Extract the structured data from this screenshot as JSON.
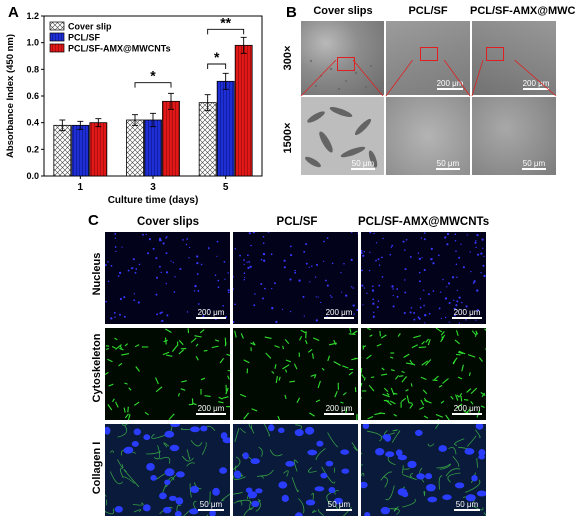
{
  "panels": {
    "a": {
      "letter": "A"
    },
    "b": {
      "letter": "B",
      "columns": [
        "Cover slips",
        "PCL/SF",
        "PCL/SF-AMX@MWCNTs"
      ],
      "rows": [
        "300×",
        "1500×"
      ],
      "scale_top": "200 μm",
      "scale_bottom": "50 μm"
    },
    "c": {
      "letter": "C",
      "columns": [
        "Cover slips",
        "PCL/SF",
        "PCL/SF-AMX@MWCNTs"
      ],
      "rows": [
        "Nucleus",
        "Cytoskeleton",
        "Collagen I"
      ],
      "scale_200": "200 μm",
      "scale_50": "50 μm"
    }
  },
  "chart_data": {
    "type": "bar",
    "ylabel": "Absorbance Index (450 nm)",
    "xlabel": "Culture time (days)",
    "categories": [
      "1",
      "3",
      "5"
    ],
    "ylim": [
      0.0,
      1.2
    ],
    "yticks": [
      "0.0",
      "0.2",
      "0.4",
      "0.6",
      "0.8",
      "1.0",
      "1.2"
    ],
    "series": [
      {
        "name": "Cover slip",
        "values": [
          0.38,
          0.42,
          0.55
        ],
        "errors": [
          0.04,
          0.04,
          0.06
        ],
        "color": "#ffffff",
        "pattern": "crosshatch"
      },
      {
        "name": "PCL/SF",
        "values": [
          0.38,
          0.42,
          0.71
        ],
        "errors": [
          0.03,
          0.05,
          0.06
        ],
        "color": "#1f2fd6",
        "pattern": "vertical"
      },
      {
        "name": "PCL/SF-AMX@MWCNTs",
        "values": [
          0.4,
          0.56,
          0.98
        ],
        "errors": [
          0.03,
          0.06,
          0.06
        ],
        "color": "#e01818",
        "pattern": "vertical"
      }
    ],
    "annotations": [
      {
        "group": "3",
        "text": "*"
      },
      {
        "group": "5",
        "text": "*"
      },
      {
        "group": "5",
        "text": "**"
      }
    ],
    "legend": "top-left"
  }
}
